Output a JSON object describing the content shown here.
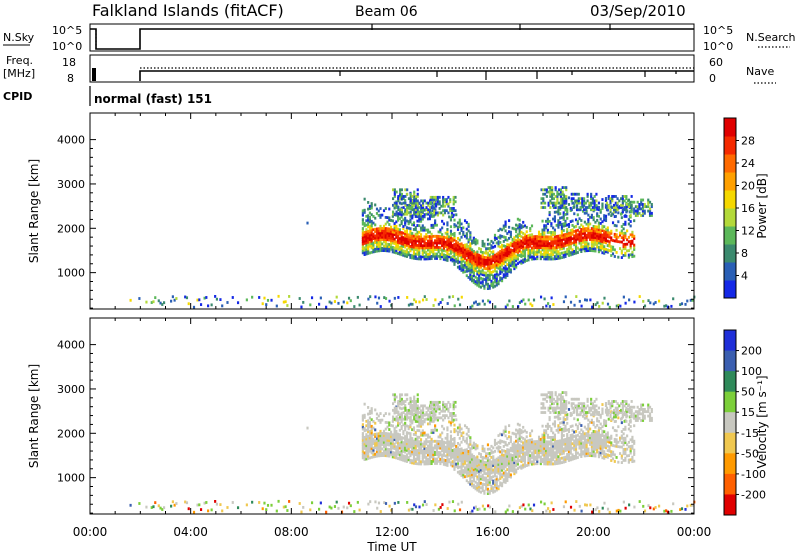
{
  "header": {
    "station": "Falkland Islands (fitACF)",
    "beam": "Beam 06",
    "date": "03/Sep/2010"
  },
  "nsky_panel": {
    "left_label": "N.Sky",
    "ticks_left": [
      "10^5",
      "10^0"
    ],
    "ticks_right": [
      "10^5",
      "10^0"
    ],
    "right_label": "N.Search"
  },
  "freq_panel": {
    "left_label_1": "Freq.",
    "left_label_2": "[MHz]",
    "ticks_left": [
      "18",
      "8"
    ],
    "ticks_right": [
      "60",
      "0"
    ],
    "right_label": "Nave"
  },
  "cpid": {
    "label": "CPID",
    "value": "normal (fast) 151"
  },
  "colors": {
    "power_scale": [
      "#1428e6",
      "#2a5fb5",
      "#3b8a6e",
      "#5cb85a",
      "#b3d93a",
      "#f5d800",
      "#ffa000",
      "#ff6a00",
      "#f52a00",
      "#e00000"
    ],
    "velocity_scale": [
      "#1f2fd8",
      "#3b5fb0",
      "#2f8a5a",
      "#7ccf3a",
      "#c8c8c0",
      "#f0c850",
      "#ff9a00",
      "#ff6000",
      "#e00000"
    ]
  },
  "chart_data": [
    {
      "type": "heatmap",
      "name": "power",
      "ylabel": "Slant Range [km]",
      "ylim": [
        180,
        4600
      ],
      "xlim": [
        0,
        24
      ],
      "yticks": [
        1000,
        2000,
        3000,
        4000
      ],
      "ytick_labels": [
        "1000",
        "2000",
        "3000",
        "4000"
      ],
      "colorbar": {
        "label": "Power [dB]",
        "range": [
          0,
          32
        ],
        "tick_values": [
          4,
          8,
          12,
          16,
          20,
          24,
          28
        ],
        "tick_labels": [
          "4",
          "8",
          "12",
          "16",
          "20",
          "24",
          "28"
        ]
      }
    },
    {
      "type": "heatmap",
      "name": "velocity",
      "ylabel": "Slant Range [km]",
      "ylim": [
        180,
        4600
      ],
      "xlim": [
        0,
        24
      ],
      "yticks": [
        1000,
        2000,
        3000,
        4000
      ],
      "ytick_labels": [
        "1000",
        "2000",
        "3000",
        "4000"
      ],
      "xlabel": "Time UT",
      "xticks": [
        0,
        4,
        8,
        12,
        16,
        20,
        24
      ],
      "xtick_labels": [
        "00:00",
        "04:00",
        "08:00",
        "12:00",
        "16:00",
        "20:00",
        "00:00"
      ],
      "colorbar": {
        "label": "Velocity [m s⁻¹]",
        "tick_labels": [
          "200",
          "100",
          "50",
          "15",
          "-15",
          "-50",
          "-100",
          "-200"
        ]
      }
    }
  ]
}
